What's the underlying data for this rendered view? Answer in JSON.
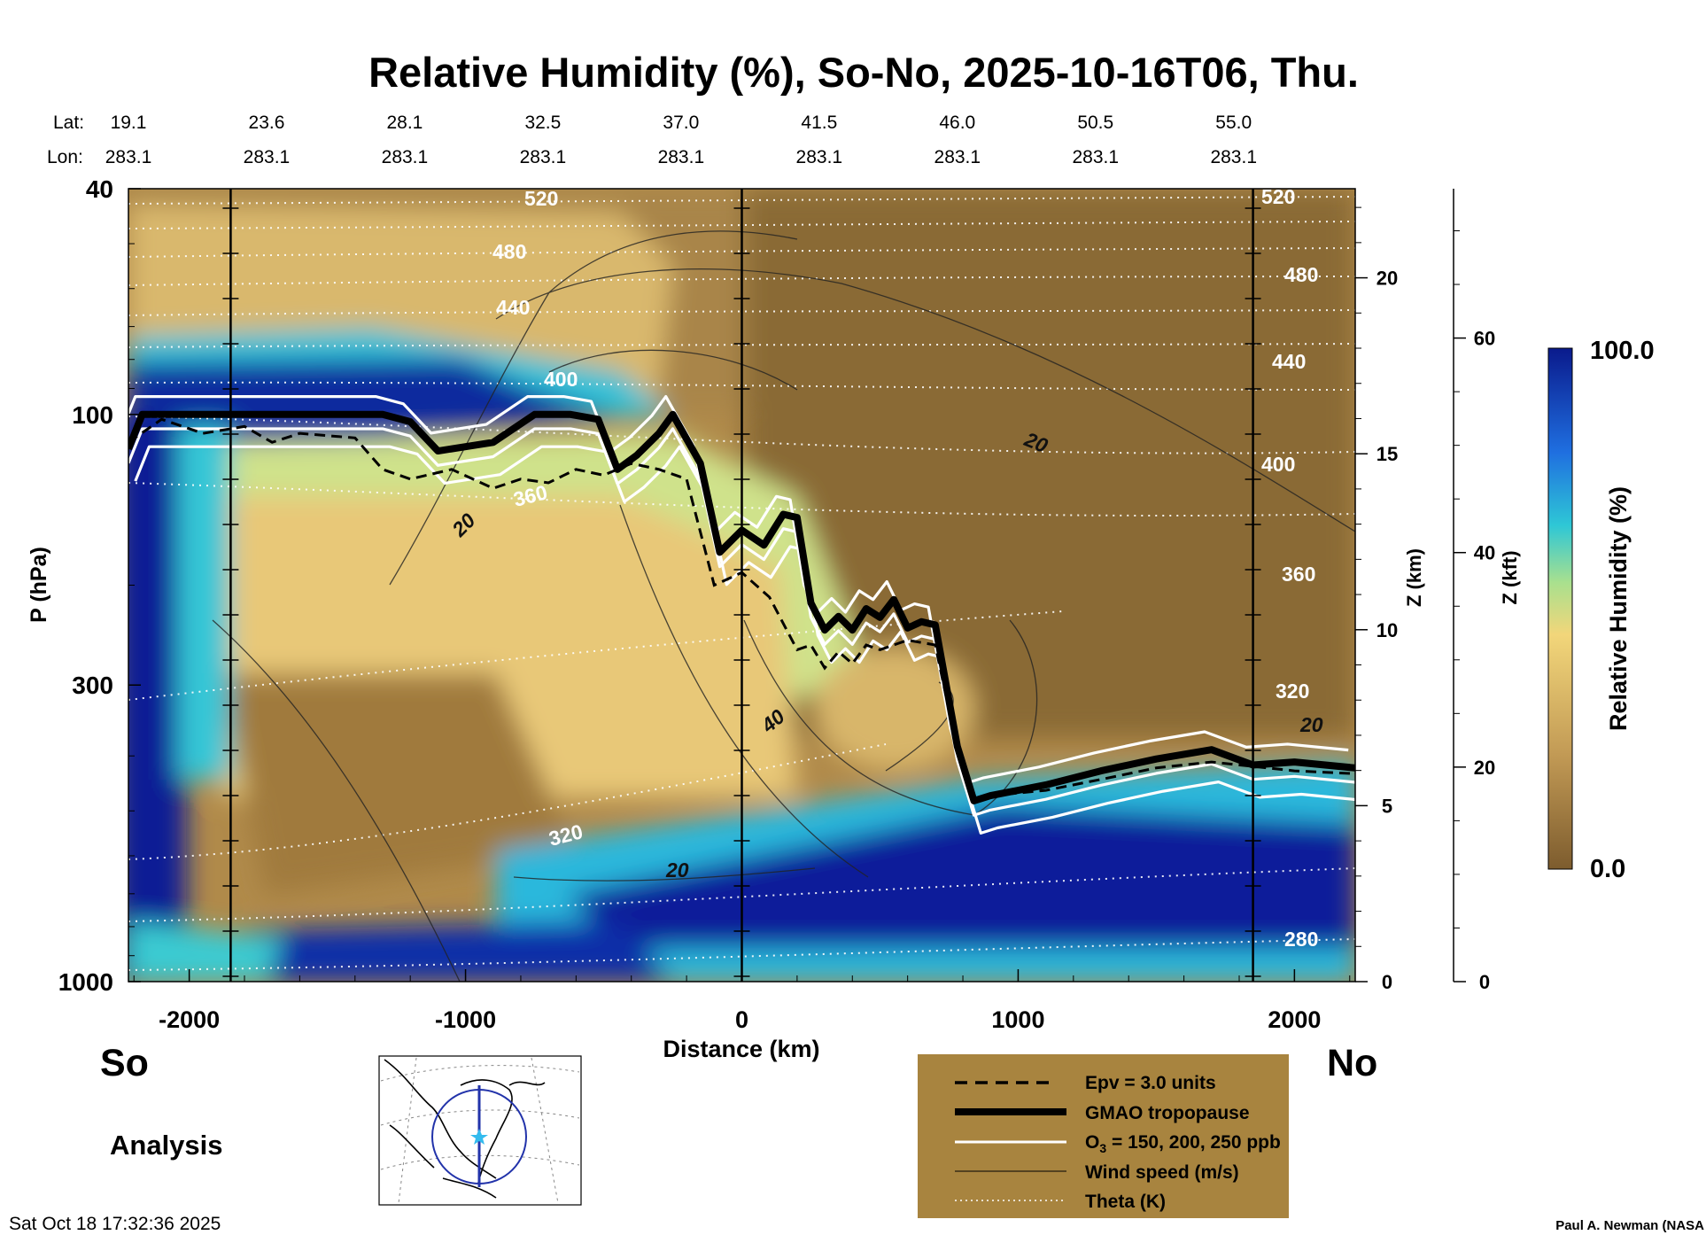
{
  "chart_data": {
    "type": "heatmap",
    "title": "Relative Humidity (%), So-No, 2025-10-16T06, Thu.",
    "xlabel": "Distance (km)",
    "ylabel": "P (hPa)",
    "right_axis_1_label": "Z (km)",
    "right_axis_2_label": "Z (kft)",
    "colorbar_label": "Relative Humidity (%)",
    "colorbar_range": [
      0.0,
      100.0
    ],
    "colorbar_ticks": [
      "100.0",
      "0.0"
    ],
    "x_ticks": [
      -2000,
      -1000,
      0,
      1000,
      2000
    ],
    "xlim": [
      -2220,
      2220
    ],
    "y_scale": "log",
    "ylim": [
      1000,
      40
    ],
    "y_ticks": [
      40,
      100,
      300,
      1000
    ],
    "z_km_ticks": [
      0,
      5,
      10,
      15,
      20
    ],
    "z_kft_ticks": [
      0,
      20,
      40,
      60
    ],
    "lat_label": "Lat:",
    "lon_label": "Lon:",
    "lats": [
      "19.1",
      "23.6",
      "28.1",
      "32.5",
      "37.0",
      "41.5",
      "46.0",
      "50.5",
      "55.0"
    ],
    "lons": [
      "283.1",
      "283.1",
      "283.1",
      "283.1",
      "283.1",
      "283.1",
      "283.1",
      "283.1",
      "283.1"
    ],
    "lat_lon_x": [
      -2220,
      -1720,
      -1220,
      -720,
      -220,
      280,
      780,
      1280,
      1780
    ],
    "vertical_markers_km": [
      -1850,
      0,
      1850
    ],
    "south_label": "So",
    "north_label": "No",
    "analysis_label": "Analysis",
    "timestamp": "Sat Oct 18 17:32:36 2025",
    "credit": "Paul A. Newman (NASA",
    "tropopause": {
      "name": "GMAO tropopause",
      "x": [
        -2220,
        -2170,
        -2050,
        -1900,
        -1700,
        -1450,
        -1300,
        -1200,
        -1100,
        -900,
        -750,
        -620,
        -520,
        -450,
        -380,
        -300,
        -250,
        -150,
        -80,
        0,
        80,
        150,
        200,
        250,
        300,
        350,
        400,
        450,
        500,
        550,
        600,
        650,
        700,
        780,
        840,
        900,
        1100,
        1300,
        1500,
        1700,
        1850,
        2000,
        2220
      ],
      "p": [
        115,
        100,
        100,
        100,
        100,
        100,
        100,
        103,
        116,
        112,
        100,
        100,
        102,
        125,
        118,
        108,
        100,
        122,
        175,
        160,
        170,
        150,
        152,
        215,
        240,
        227,
        240,
        220,
        228,
        212,
        238,
        232,
        235,
        385,
        480,
        470,
        450,
        425,
        405,
        390,
        415,
        410,
        420
      ]
    },
    "epv_3": {
      "name": "Epv = 3.0 units",
      "x": [
        -2220,
        -2100,
        -1950,
        -1800,
        -1700,
        -1600,
        -1400,
        -1300,
        -1200,
        -1050,
        -900,
        -800,
        -700,
        -600,
        -500,
        -400,
        -300,
        -200,
        -100,
        0,
        100,
        200,
        250,
        300,
        350,
        400,
        450,
        500,
        600,
        700,
        780,
        840,
        900,
        1100,
        1300,
        1500,
        1700,
        2000,
        2220
      ],
      "p": [
        112,
        102,
        108,
        105,
        112,
        108,
        110,
        125,
        130,
        125,
        135,
        130,
        132,
        125,
        128,
        122,
        125,
        130,
        200,
        190,
        210,
        260,
        255,
        280,
        262,
        275,
        255,
        260,
        250,
        255,
        390,
        480,
        470,
        460,
        440,
        420,
        410,
        425,
        430
      ]
    },
    "o3_contours": {
      "name": "O3 = 150, 200, 250 ppb",
      "levels_ppb": [
        150,
        200,
        250
      ]
    },
    "wind_contours": {
      "name": "Wind speed (m/s)",
      "labels": [
        "20",
        "20",
        "20",
        "40",
        "20"
      ]
    },
    "theta": {
      "name": "Theta (K)",
      "labels": [
        "520",
        "480",
        "440",
        "400",
        "360",
        "320",
        "520",
        "480",
        "440",
        "400",
        "360",
        "320",
        "280"
      ]
    },
    "legend": {
      "placement": "bottom-center",
      "entries": [
        {
          "label": "Epv = 3.0 units",
          "style": "dashed"
        },
        {
          "label": "GMAO tropopause",
          "style": "thick"
        },
        {
          "label_main": "O",
          "label_sub": "3",
          "label_rest": " = 150, 200, 250 ppb",
          "style": "white"
        },
        {
          "label": "Wind speed (m/s)",
          "style": "thin"
        },
        {
          "label": "Theta (K)",
          "style": "dotted"
        }
      ]
    },
    "colors": {
      "dry": "#7d5c2e",
      "moist": "#f2d67a",
      "wet": "#2ec7d6",
      "saturated": "#0a1a8c",
      "legend_box": "#a8843f"
    }
  }
}
